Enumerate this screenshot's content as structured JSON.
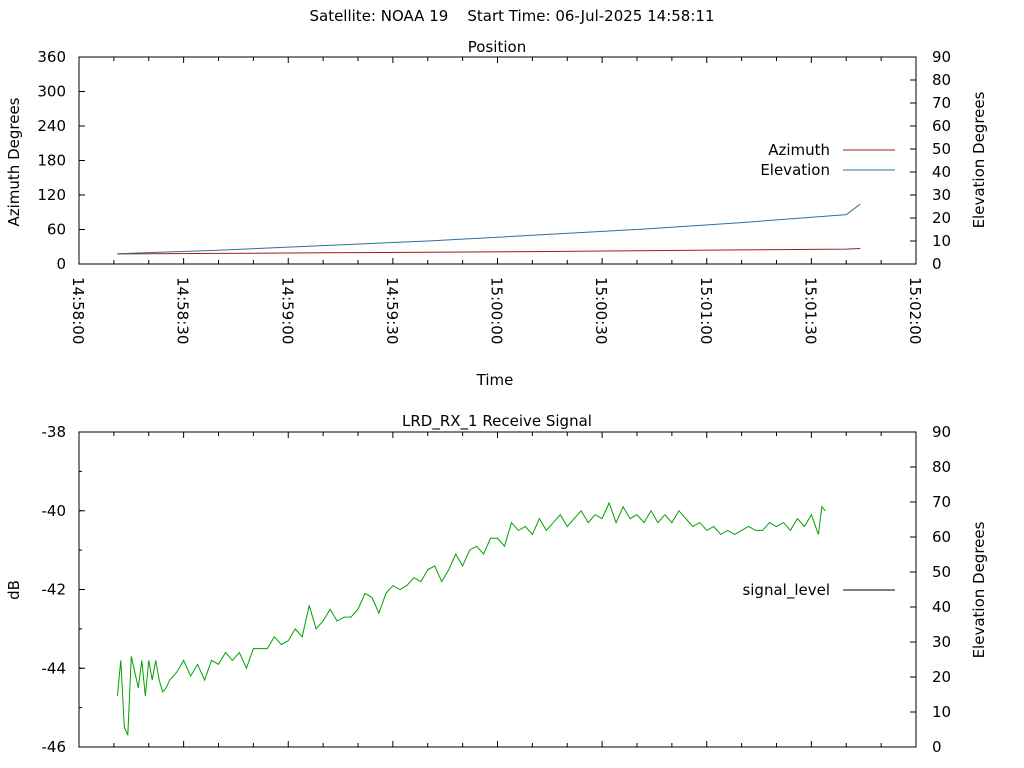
{
  "header": {
    "satellite": "Satellite: NOAA 19",
    "start_time": "Start Time: 06-Jul-2025 14:58:11"
  },
  "chart_data": [
    {
      "type": "line",
      "title": "Position",
      "xlabel": "Time",
      "ylabel": "Azimuth Degrees",
      "y2label": "Elevation Degrees",
      "x_ticks": [
        "14:58:00",
        "14:58:30",
        "14:59:00",
        "14:59:30",
        "15:00:00",
        "15:00:30",
        "15:01:00",
        "15:01:30",
        "15:02:00"
      ],
      "xlim_seconds_after_first_tick": [
        0,
        240
      ],
      "ylim": [
        0,
        360
      ],
      "y_ticks": [
        "0",
        "60",
        "120",
        "180",
        "240",
        "300",
        "360"
      ],
      "y2lim": [
        0,
        90
      ],
      "y2_ticks": [
        "0",
        "10",
        "20",
        "30",
        "40",
        "50",
        "60",
        "70",
        "80",
        "90"
      ],
      "legend_position": "right",
      "series": [
        {
          "name": "Azimuth",
          "color": "#9e1f1f",
          "x": [
            "14:58:11",
            "14:58:40",
            "14:59:10",
            "14:59:40",
            "15:00:10",
            "15:00:40",
            "15:01:10",
            "15:01:40",
            "15:01:44"
          ],
          "y": [
            17.5,
            18.5,
            19.5,
            20.5,
            21.5,
            23,
            24.5,
            26,
            27
          ]
        },
        {
          "name": "Elevation",
          "color": "#2e6f9e",
          "axis": "right",
          "x": [
            "14:58:11",
            "14:58:40",
            "14:59:10",
            "14:59:40",
            "15:00:10",
            "15:00:40",
            "15:01:10",
            "15:01:40",
            "15:01:44"
          ],
          "y": [
            4.5,
            6,
            8,
            10,
            12.5,
            15,
            18,
            21.5,
            26
          ]
        }
      ]
    },
    {
      "type": "line",
      "title": "LRD_RX_1 Receive Signal",
      "ylabel": "dB",
      "y2label": "Elevation Degrees",
      "ylim": [
        -46,
        -38
      ],
      "y_ticks": [
        "-38",
        "-40",
        "-42",
        "-44",
        "-46"
      ],
      "y2lim": [
        0,
        90
      ],
      "y2_ticks": [
        "0",
        "10",
        "20",
        "30",
        "40",
        "50",
        "60",
        "70",
        "80",
        "90"
      ],
      "xlim_seconds_after_first_tick": [
        0,
        240
      ],
      "legend_position": "right",
      "series": [
        {
          "name": "signal_level",
          "color": "#00a000",
          "x_seconds_after_first_tick": [
            11,
            12,
            13,
            14,
            15,
            17,
            18,
            19,
            20,
            21,
            22,
            23,
            24,
            25,
            26,
            28,
            30,
            32,
            34,
            36,
            38,
            40,
            42,
            44,
            46,
            48,
            50,
            52,
            54,
            56,
            58,
            60,
            62,
            64,
            66,
            68,
            70,
            72,
            74,
            76,
            78,
            80,
            82,
            84,
            86,
            88,
            90,
            92,
            94,
            96,
            98,
            100,
            102,
            104,
            106,
            108,
            110,
            112,
            114,
            116,
            118,
            120,
            122,
            124,
            126,
            128,
            130,
            132,
            134,
            136,
            138,
            140,
            142,
            144,
            146,
            148,
            150,
            152,
            154,
            156,
            158,
            160,
            162,
            164,
            166,
            168,
            170,
            172,
            174,
            176,
            178,
            180,
            182,
            184,
            186,
            188,
            190,
            192,
            194,
            196,
            198,
            200,
            202,
            204,
            206,
            208,
            210,
            212,
            213,
            214
          ],
          "values": [
            -44.7,
            -43.8,
            -45.5,
            -45.7,
            -43.7,
            -44.5,
            -43.8,
            -44.7,
            -43.8,
            -44.3,
            -43.8,
            -44.3,
            -44.6,
            -44.5,
            -44.3,
            -44.1,
            -43.8,
            -44.2,
            -43.9,
            -44.3,
            -43.8,
            -43.9,
            -43.6,
            -43.8,
            -43.6,
            -44.0,
            -43.5,
            -43.5,
            -43.5,
            -43.2,
            -43.4,
            -43.3,
            -43.0,
            -43.2,
            -42.4,
            -43.0,
            -42.8,
            -42.5,
            -42.8,
            -42.7,
            -42.7,
            -42.5,
            -42.1,
            -42.2,
            -42.6,
            -42.1,
            -41.9,
            -42.0,
            -41.9,
            -41.7,
            -41.8,
            -41.5,
            -41.4,
            -41.8,
            -41.5,
            -41.1,
            -41.4,
            -41.0,
            -40.9,
            -41.1,
            -40.7,
            -40.7,
            -40.9,
            -40.3,
            -40.5,
            -40.4,
            -40.6,
            -40.2,
            -40.5,
            -40.3,
            -40.1,
            -40.4,
            -40.2,
            -40.0,
            -40.3,
            -40.1,
            -40.2,
            -39.8,
            -40.3,
            -39.9,
            -40.2,
            -40.1,
            -40.3,
            -40.0,
            -40.3,
            -40.1,
            -40.3,
            -40.0,
            -40.2,
            -40.4,
            -40.3,
            -40.5,
            -40.4,
            -40.6,
            -40.5,
            -40.6,
            -40.5,
            -40.4,
            -40.5,
            -40.5,
            -40.3,
            -40.4,
            -40.3,
            -40.5,
            -40.2,
            -40.4,
            -40.1,
            -40.6,
            -39.9,
            -40.0
          ]
        }
      ]
    }
  ]
}
